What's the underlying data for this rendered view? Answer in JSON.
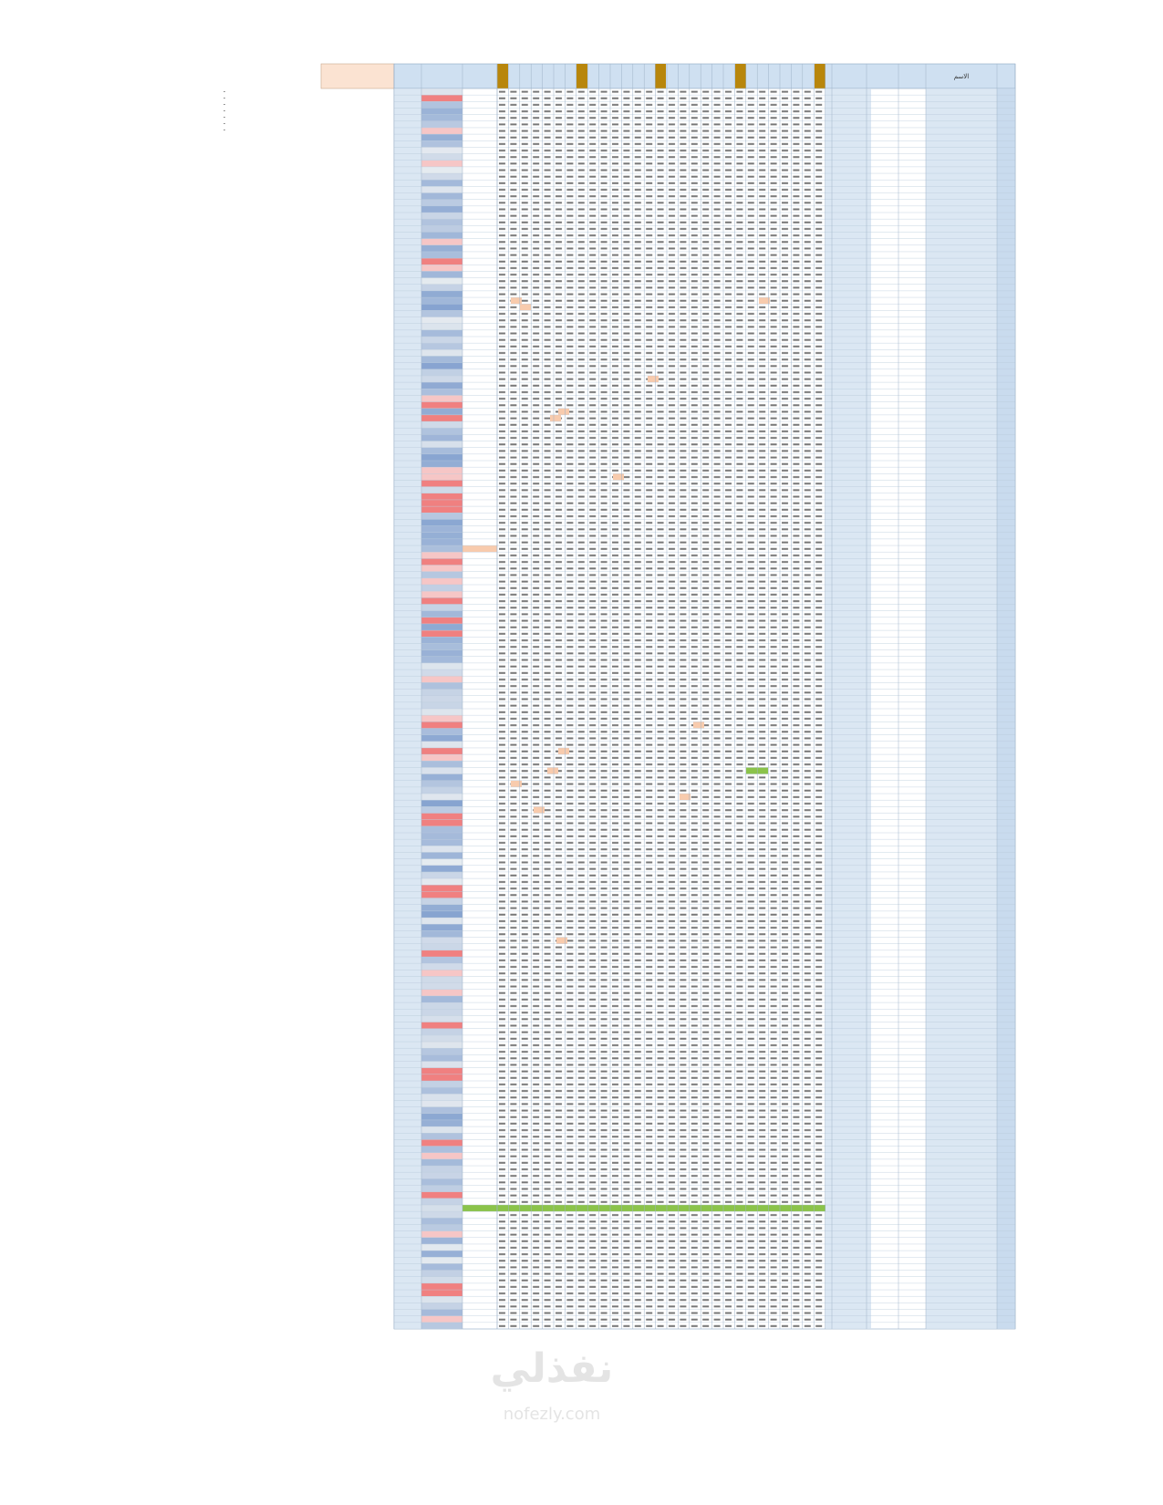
{
  "header": {
    "name_column": "الاسم"
  },
  "watermark": {
    "arabic": "نفذلي",
    "latin": "nofezly.com"
  }
}
